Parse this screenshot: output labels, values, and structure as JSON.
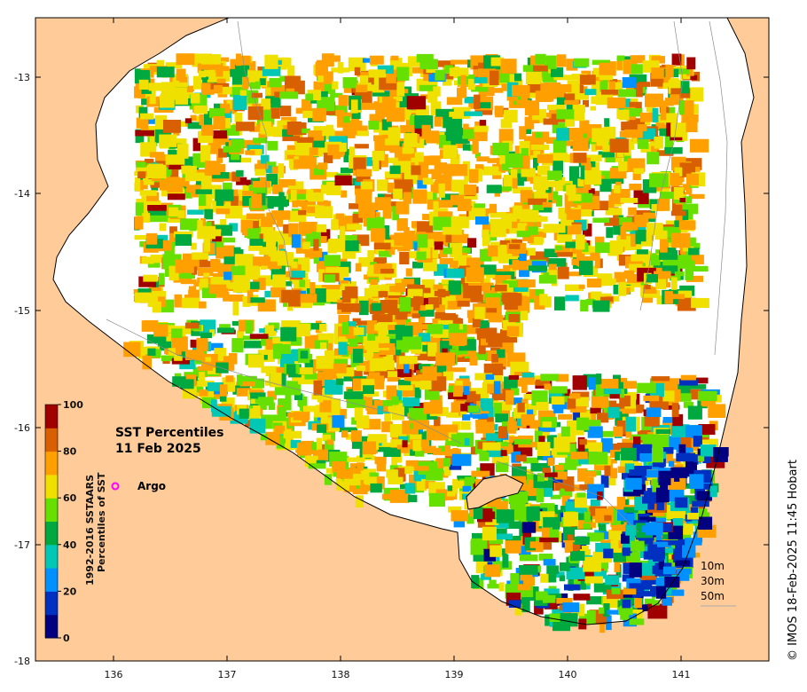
{
  "map": {
    "title_line1": "SST Percentiles",
    "title_line2": "11 Feb 2025",
    "credit": "© IMOS 18-Feb-2025 11:45 Hobart",
    "x_ticks": [
      "136",
      "137",
      "138",
      "139",
      "140",
      "141"
    ],
    "y_ticks": [
      "-13",
      "-14",
      "-15",
      "-16",
      "-17",
      "-18"
    ],
    "argo_label": "Argo",
    "depth_labels": [
      "10m",
      "30m",
      "50m"
    ],
    "colorbar": {
      "title_line1": "1992-2016 SSTAARS",
      "title_line2": "Percentiles of SST",
      "ticks": [
        "0",
        "20",
        "40",
        "60",
        "80",
        "100"
      ],
      "colors": [
        "#000080",
        "#0030c0",
        "#0090ff",
        "#00c8b4",
        "#00a840",
        "#66e000",
        "#f0e000",
        "#ffa000",
        "#d86000",
        "#a00000"
      ]
    },
    "colors": {
      "land": "#ffcc99",
      "ocean_nodata": "#ffffff",
      "coast_line": "#000000",
      "argo": "#ff00ff"
    }
  }
}
